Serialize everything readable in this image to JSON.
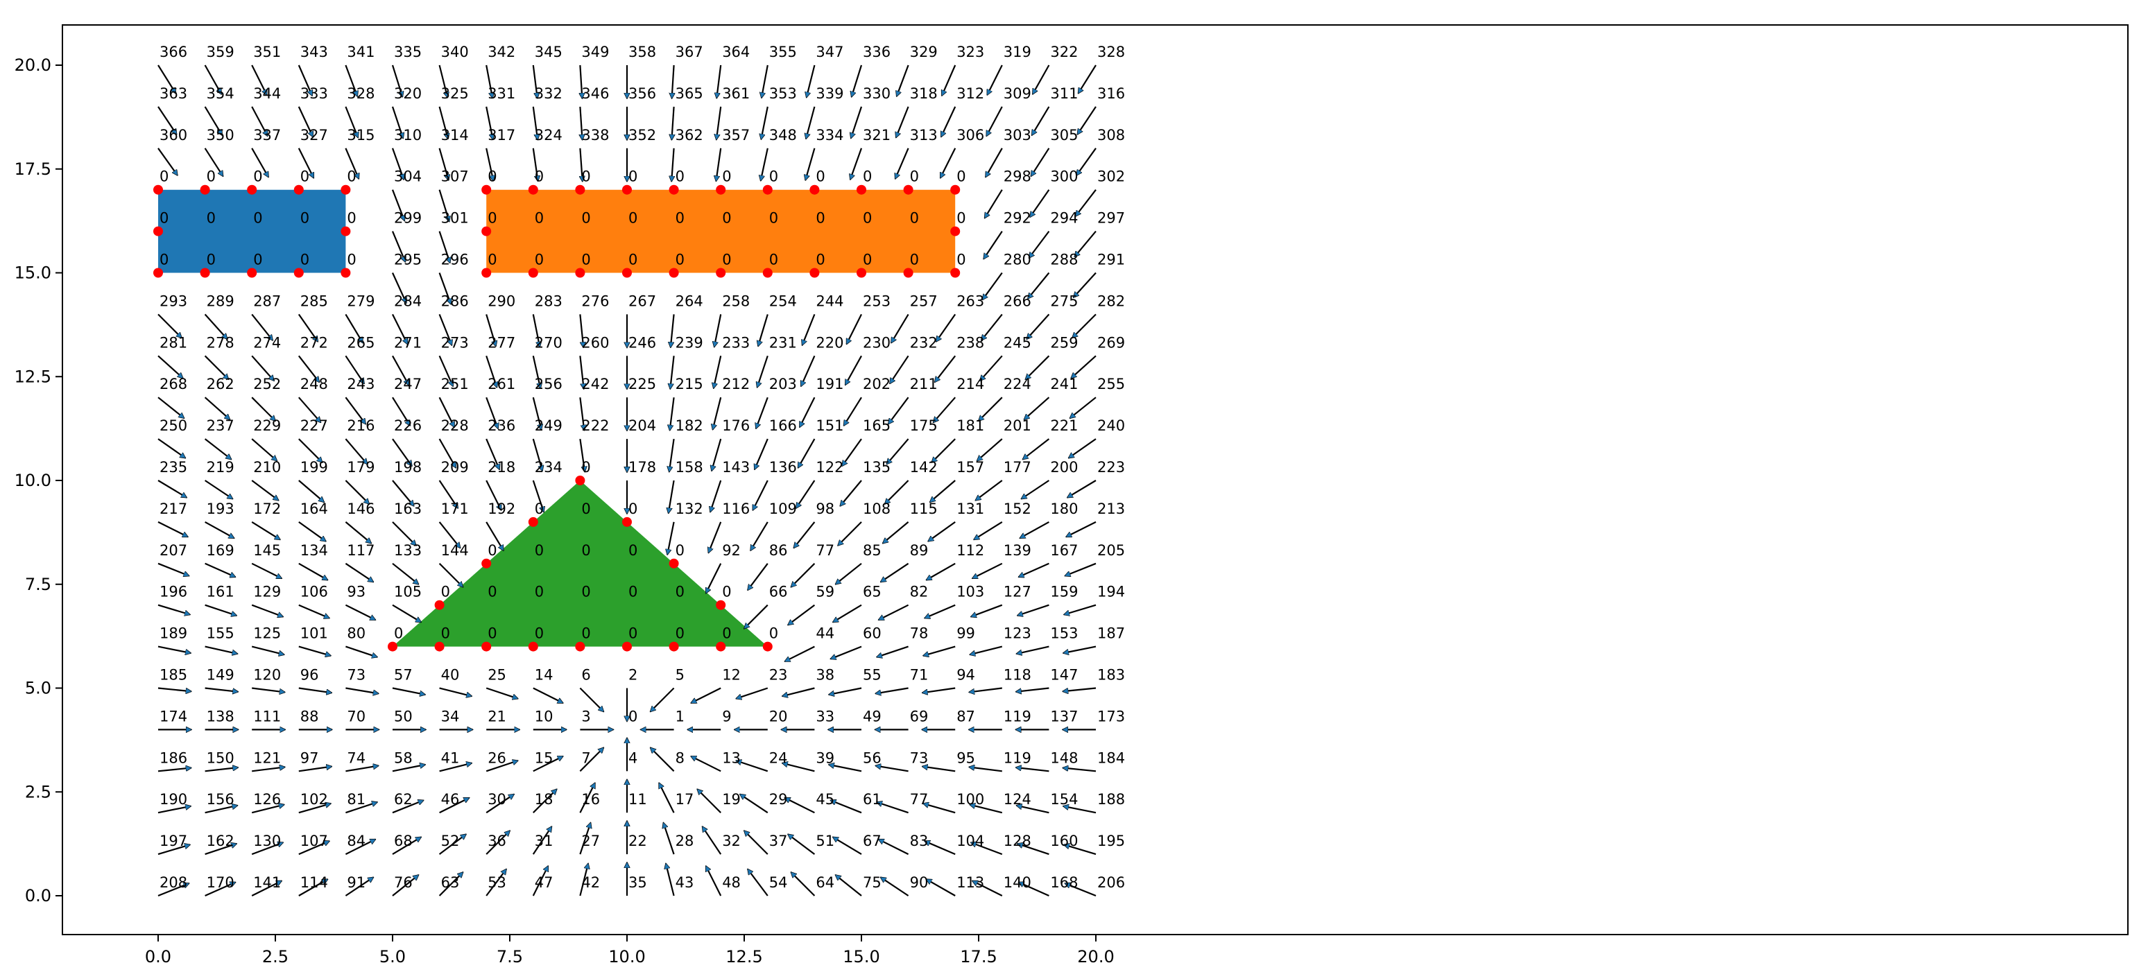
{
  "chart_data": {
    "type": "scatter",
    "title": "",
    "xlabel": "",
    "ylabel": "",
    "xlim": [
      -0.5,
      20.5
    ],
    "ylim": [
      -1.0,
      20.6
    ],
    "grid": false,
    "x_ticks": [
      "0.0",
      "2.5",
      "5.0",
      "7.5",
      "10.0",
      "12.5",
      "15.0",
      "17.5",
      "20.0"
    ],
    "y_ticks": [
      "0.0",
      "2.5",
      "5.0",
      "7.5",
      "10.0",
      "12.5",
      "15.0",
      "17.5",
      "20.0"
    ],
    "colors": {
      "arrow": "#1f77b4",
      "obstacle_points": "#ff0000",
      "rectangle_left": "#1f77b4",
      "rectangle_right": "#ff7f0e",
      "triangle": "#2ca02c"
    },
    "obstacles": [
      {
        "shape": "rectangle",
        "color": "#1f77b4",
        "vertices": [
          [
            0,
            15
          ],
          [
            4,
            15
          ],
          [
            4,
            17
          ],
          [
            0,
            17
          ]
        ]
      },
      {
        "shape": "rectangle",
        "color": "#ff7f0e",
        "vertices": [
          [
            7,
            15
          ],
          [
            17,
            15
          ],
          [
            17,
            17
          ],
          [
            7,
            17
          ]
        ]
      },
      {
        "shape": "triangle",
        "color": "#2ca02c",
        "vertices": [
          [
            5,
            6
          ],
          [
            13,
            6
          ],
          [
            9,
            10
          ]
        ]
      }
    ],
    "goal": [
      10,
      4
    ],
    "rows": [
      {
        "y": 20,
        "labels": [
          "366",
          "359",
          "351",
          "343",
          "341",
          "335",
          "340",
          "342",
          "345",
          "349",
          "358",
          "367",
          "364",
          "355",
          "347",
          "336",
          "329",
          "323",
          "319",
          "322",
          "328"
        ]
      },
      {
        "y": 19,
        "labels": [
          "363",
          "354",
          "344",
          "333",
          "328",
          "320",
          "325",
          "331",
          "332",
          "346",
          "356",
          "365",
          "361",
          "353",
          "339",
          "330",
          "318",
          "312",
          "309",
          "311",
          "316"
        ]
      },
      {
        "y": 18,
        "labels": [
          "360",
          "350",
          "337",
          "327",
          "315",
          "310",
          "314",
          "317",
          "324",
          "338",
          "352",
          "362",
          "357",
          "348",
          "334",
          "321",
          "313",
          "306",
          "303",
          "305",
          "308"
        ]
      },
      {
        "y": 17,
        "labels": [
          "0",
          "0",
          "0",
          "0",
          "0",
          "304",
          "307",
          "0",
          "0",
          "0",
          "0",
          "0",
          "0",
          "0",
          "0",
          "0",
          "0",
          "0",
          "298",
          "300",
          "302"
        ]
      },
      {
        "y": 16,
        "labels": [
          "0",
          "0",
          "0",
          "0",
          "0",
          "299",
          "301",
          "0",
          "0",
          "0",
          "0",
          "0",
          "0",
          "0",
          "0",
          "0",
          "0",
          "0",
          "292",
          "294",
          "297"
        ]
      },
      {
        "y": 15,
        "labels": [
          "0",
          "0",
          "0",
          "0",
          "0",
          "295",
          "296",
          "0",
          "0",
          "0",
          "0",
          "0",
          "0",
          "0",
          "0",
          "0",
          "0",
          "0",
          "280",
          "288",
          "291"
        ]
      },
      {
        "y": 14,
        "labels": [
          "293",
          "289",
          "287",
          "285",
          "279",
          "284",
          "286",
          "290",
          "283",
          "276",
          "267",
          "264",
          "258",
          "254",
          "244",
          "253",
          "257",
          "263",
          "266",
          "275",
          "282"
        ]
      },
      {
        "y": 13,
        "labels": [
          "281",
          "278",
          "274",
          "272",
          "265",
          "271",
          "273",
          "277",
          "270",
          "260",
          "246",
          "239",
          "233",
          "231",
          "220",
          "230",
          "232",
          "238",
          "245",
          "259",
          "269"
        ]
      },
      {
        "y": 12,
        "labels": [
          "268",
          "262",
          "252",
          "248",
          "243",
          "247",
          "251",
          "261",
          "256",
          "242",
          "225",
          "215",
          "212",
          "203",
          "191",
          "202",
          "211",
          "214",
          "224",
          "241",
          "255"
        ]
      },
      {
        "y": 11,
        "labels": [
          "250",
          "237",
          "229",
          "227",
          "216",
          "226",
          "228",
          "236",
          "249",
          "222",
          "204",
          "182",
          "176",
          "166",
          "151",
          "165",
          "175",
          "181",
          "201",
          "221",
          "240"
        ]
      },
      {
        "y": 10,
        "labels": [
          "235",
          "219",
          "210",
          "199",
          "179",
          "198",
          "209",
          "218",
          "234",
          "0",
          "178",
          "158",
          "143",
          "136",
          "122",
          "135",
          "142",
          "157",
          "177",
          "200",
          "223"
        ]
      },
      {
        "y": 9,
        "labels": [
          "217",
          "193",
          "172",
          "164",
          "146",
          "163",
          "171",
          "192",
          "0",
          "0",
          "0",
          "132",
          "116",
          "109",
          "98",
          "108",
          "115",
          "131",
          "152",
          "180",
          "213"
        ]
      },
      {
        "y": 8,
        "labels": [
          "207",
          "169",
          "145",
          "134",
          "117",
          "133",
          "144",
          "0",
          "0",
          "0",
          "0",
          "0",
          "92",
          "86",
          "77",
          "85",
          "89",
          "112",
          "139",
          "167",
          "205"
        ]
      },
      {
        "y": 7,
        "labels": [
          "196",
          "161",
          "129",
          "106",
          "93",
          "105",
          "0",
          "0",
          "0",
          "0",
          "0",
          "0",
          "0",
          "66",
          "59",
          "65",
          "82",
          "103",
          "127",
          "159",
          "194"
        ]
      },
      {
        "y": 6,
        "labels": [
          "189",
          "155",
          "125",
          "101",
          "80",
          "0",
          "0",
          "0",
          "0",
          "0",
          "0",
          "0",
          "0",
          "0",
          "44",
          "60",
          "78",
          "99",
          "123",
          "153",
          "187"
        ]
      },
      {
        "y": 5,
        "labels": [
          "185",
          "149",
          "120",
          "96",
          "73",
          "57",
          "40",
          "25",
          "14",
          "6",
          "2",
          "5",
          "12",
          "23",
          "38",
          "55",
          "71",
          "94",
          "118",
          "147",
          "183"
        ]
      },
      {
        "y": 4,
        "labels": [
          "174",
          "138",
          "111",
          "88",
          "70",
          "50",
          "34",
          "21",
          "10",
          "3",
          "0",
          "1",
          "9",
          "20",
          "33",
          "49",
          "69",
          "87",
          "119",
          "137",
          "173"
        ]
      },
      {
        "y": 3,
        "labels": [
          "186",
          "150",
          "121",
          "97",
          "74",
          "58",
          "41",
          "26",
          "15",
          "7",
          "4",
          "8",
          "13",
          "24",
          "39",
          "56",
          "73",
          "95",
          "119",
          "148",
          "184"
        ]
      },
      {
        "y": 2,
        "labels": [
          "190",
          "156",
          "126",
          "102",
          "81",
          "62",
          "46",
          "30",
          "18",
          "16",
          "11",
          "17",
          "19",
          "29",
          "45",
          "61",
          "77",
          "100",
          "124",
          "154",
          "188"
        ]
      },
      {
        "y": 1,
        "labels": [
          "197",
          "162",
          "130",
          "107",
          "84",
          "68",
          "52",
          "36",
          "31",
          "27",
          "22",
          "28",
          "32",
          "37",
          "51",
          "67",
          "83",
          "104",
          "128",
          "160",
          "195"
        ]
      },
      {
        "y": 0,
        "labels": [
          "208",
          "170",
          "141",
          "114",
          "91",
          "76",
          "63",
          "53",
          "47",
          "42",
          "35",
          "43",
          "48",
          "54",
          "64",
          "75",
          "90",
          "113",
          "140",
          "168",
          "206"
        ]
      }
    ]
  }
}
